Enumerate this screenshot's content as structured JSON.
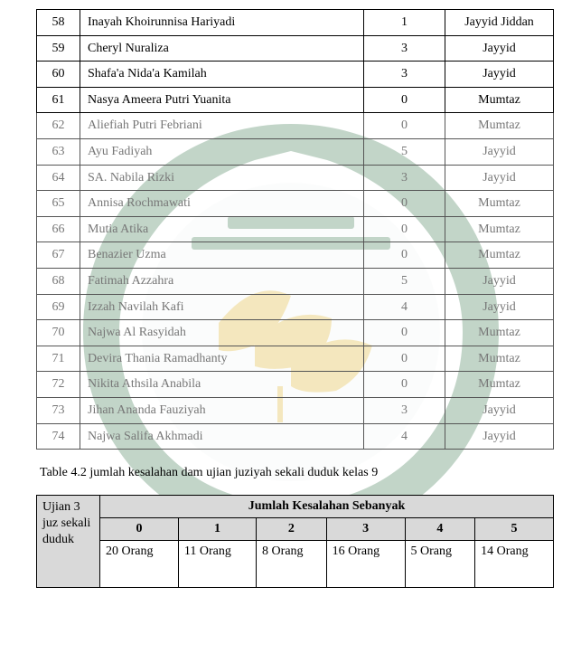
{
  "rows": [
    {
      "no": "58",
      "name": "Inayah Khoirunnisa Hariyadi",
      "score": "1",
      "grade": "Jayyid Jiddan",
      "dim": false
    },
    {
      "no": "59",
      "name": "Cheryl Nuraliza",
      "score": "3",
      "grade": "Jayyid",
      "dim": false
    },
    {
      "no": "60",
      "name": "Shafa'a Nida'a Kamilah",
      "score": "3",
      "grade": "Jayyid",
      "dim": false
    },
    {
      "no": "61",
      "name": "Nasya Ameera Putri Yuanita",
      "score": "0",
      "grade": "Mumtaz",
      "dim": false
    },
    {
      "no": "62",
      "name": "Aliefiah Putri Febriani",
      "score": "0",
      "grade": "Mumtaz",
      "dim": true
    },
    {
      "no": "63",
      "name": "Ayu Fadiyah",
      "score": "5",
      "grade": "Jayyid",
      "dim": true
    },
    {
      "no": "64",
      "name": "SA. Nabila Rizki",
      "score": "3",
      "grade": "Jayyid",
      "dim": true
    },
    {
      "no": "65",
      "name": "Annisa Rochmawati",
      "score": "0",
      "grade": "Mumtaz",
      "dim": true
    },
    {
      "no": "66",
      "name": "Mutia Atika",
      "score": "0",
      "grade": "Mumtaz",
      "dim": true
    },
    {
      "no": "67",
      "name": "Benazier Uzma",
      "score": "0",
      "grade": "Mumtaz",
      "dim": true
    },
    {
      "no": "68",
      "name": "Fatimah Azzahra",
      "score": "5",
      "grade": "Jayyid",
      "dim": true
    },
    {
      "no": "69",
      "name": "Izzah Navilah Kafi",
      "score": "4",
      "grade": "Jayyid",
      "dim": true
    },
    {
      "no": "70",
      "name": "Najwa Al Rasyidah",
      "score": "0",
      "grade": "Mumtaz",
      "dim": true
    },
    {
      "no": "71",
      "name": "Devira Thania Ramadhanty",
      "score": "0",
      "grade": "Mumtaz",
      "dim": true
    },
    {
      "no": "72",
      "name": "Nikita Athsila Anabila",
      "score": "0",
      "grade": "Mumtaz",
      "dim": true
    },
    {
      "no": "73",
      "name": "Jihan Ananda Fauziyah",
      "score": "3",
      "grade": "Jayyid",
      "dim": true
    },
    {
      "no": "74",
      "name": "Najwa Salifa Akhmadi",
      "score": "4",
      "grade": "Jayyid",
      "dim": true
    }
  ],
  "caption": "Table 4.2 jumlah kesalahan dam ujian juziyah sekali duduk kelas 9",
  "summary": {
    "side_label": "Ujian 3 juz sekali duduk",
    "header_title": "Jumlah Kesalahan Sebanyak",
    "cols": [
      "0",
      "1",
      "2",
      "3",
      "4",
      "5"
    ],
    "values": [
      "20 Orang",
      "11 Orang",
      "8 Orang",
      "16 Orang",
      "5 Orang",
      "14 Orang"
    ]
  },
  "style": {
    "body_bg": "#ffffff",
    "text_color": "#000000",
    "dim_text_color": "#777777",
    "border_color": "#000000",
    "header_bg": "#d9d9d9",
    "watermark_outer": "#f3f7f4",
    "watermark_green": "#0f5a2a",
    "watermark_gold": "#d6a300",
    "watermark_opacity": 0.25
  }
}
